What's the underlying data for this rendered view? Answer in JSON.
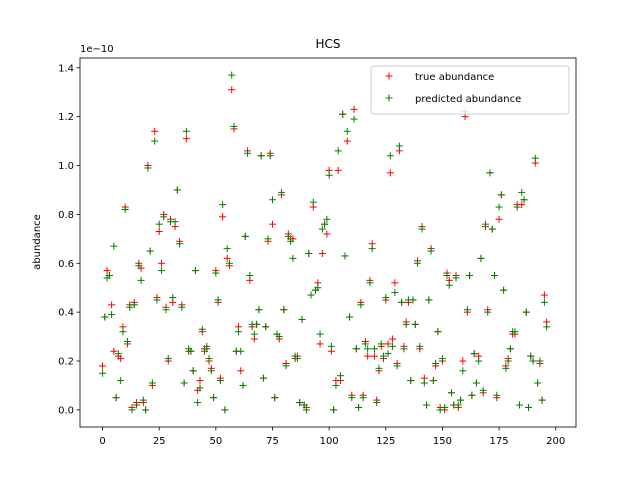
{
  "chart_data": {
    "type": "scatter",
    "title": "HCS",
    "xlabel": "",
    "ylabel": "abundance",
    "y_offset_label": "1e−10",
    "xlim": [
      -9.95,
      208.95
    ],
    "ylim": [
      -0.07,
      1.44
    ],
    "x_ticks": [
      0,
      25,
      50,
      75,
      100,
      125,
      150,
      175,
      200
    ],
    "y_ticks": [
      0.0,
      0.2,
      0.4,
      0.6,
      0.8,
      1.0,
      1.2,
      1.4
    ],
    "y_tick_labels": [
      "0.0",
      "0.2",
      "0.4",
      "0.6",
      "0.8",
      "1.0",
      "1.2",
      "1.4"
    ],
    "x_tick_labels": [
      "0",
      "25",
      "50",
      "75",
      "100",
      "125",
      "150",
      "175",
      "200"
    ],
    "marker": "+",
    "legend_position": "top-right",
    "grid": false,
    "x": [
      0,
      1,
      2,
      3,
      4,
      5,
      6,
      7,
      8,
      9,
      10,
      11,
      12,
      13,
      14,
      15,
      16,
      17,
      18,
      19,
      20,
      21,
      22,
      23,
      24,
      25,
      26,
      27,
      28,
      29,
      30,
      31,
      32,
      33,
      34,
      35,
      36,
      37,
      38,
      39,
      40,
      41,
      42,
      43,
      44,
      45,
      46,
      47,
      48,
      49,
      50,
      51,
      52,
      53,
      54,
      55,
      56,
      57,
      58,
      59,
      60,
      61,
      62,
      63,
      64,
      65,
      66,
      67,
      68,
      69,
      70,
      71,
      72,
      73,
      74,
      75,
      76,
      77,
      78,
      79,
      80,
      81,
      82,
      83,
      84,
      85,
      86,
      87,
      88,
      89,
      90,
      91,
      92,
      93,
      94,
      95,
      96,
      97,
      98,
      99,
      100,
      101,
      102,
      103,
      104,
      105,
      106,
      107,
      108,
      109,
      110,
      111,
      112,
      113,
      114,
      115,
      116,
      117,
      118,
      119,
      120,
      121,
      122,
      123,
      124,
      125,
      126,
      127,
      128,
      129,
      130,
      131,
      132,
      133,
      134,
      135,
      136,
      137,
      138,
      139,
      140,
      141,
      142,
      143,
      144,
      145,
      146,
      147,
      148,
      149,
      150,
      151,
      152,
      153,
      154,
      155,
      156,
      157,
      158,
      159,
      160,
      161,
      162,
      163,
      164,
      165,
      166,
      167,
      168,
      169,
      170,
      171,
      172,
      173,
      174,
      175,
      176,
      177,
      178,
      179,
      180,
      181,
      182,
      183,
      184,
      185,
      186,
      187,
      188,
      189,
      190,
      191,
      192,
      193,
      194,
      195,
      196,
      197,
      198,
      199
    ],
    "series": [
      {
        "name": "true abundance",
        "color": "#ff0000",
        "values": [
          0.18,
          0.38,
          0.57,
          0.55,
          0.43,
          0.24,
          0.05,
          0.22,
          0.21,
          0.34,
          0.83,
          0.27,
          0.43,
          0.01,
          0.44,
          0.03,
          0.6,
          0.58,
          0.03,
          0.0,
          1.0,
          0.65,
          0.1,
          1.14,
          0.46,
          0.73,
          0.6,
          0.8,
          0.42,
          0.2,
          0.78,
          0.44,
          0.75,
          0.9,
          0.69,
          0.43,
          0.11,
          1.11,
          0.24,
          0.24,
          0.16,
          0.57,
          0.08,
          0.12,
          0.32,
          0.24,
          0.26,
          0.2,
          0.17,
          0.05,
          0.57,
          0.44,
          0.13,
          0.79,
          0.0,
          0.62,
          0.59,
          1.31,
          1.15,
          0.24,
          0.34,
          0.16,
          0.1,
          0.71,
          1.06,
          0.53,
          0.34,
          0.29,
          0.35,
          0.41,
          1.04,
          0.13,
          0.34,
          0.69,
          1.05,
          0.76,
          0.05,
          0.31,
          0.29,
          0.88,
          0.41,
          0.19,
          0.72,
          0.7,
          0.7,
          0.21,
          0.22,
          0.03,
          0.37,
          0.02,
          0.01,
          0.64,
          0.47,
          0.83,
          0.49,
          0.52,
          0.27,
          0.64,
          0.76,
          0.72,
          0.98,
          0.24,
          0.0,
          0.12,
          0.98,
          0.12,
          1.21,
          0.63,
          1.1,
          0.38,
          0.06,
          1.23,
          0.25,
          0.01,
          0.44,
          0.06,
          0.28,
          0.22,
          0.53,
          0.68,
          0.22,
          0.04,
          0.16,
          0.26,
          0.21,
          0.45,
          0.27,
          0.97,
          0.29,
          0.52,
          0.19,
          1.06,
          0.44,
          0.26,
          0.36,
          0.44,
          0.12,
          0.45,
          0.35,
          0.61,
          0.25,
          0.75,
          0.13,
          0.02,
          0.45,
          0.66,
          0.12,
          0.18,
          0.32,
          0.01,
          0.2,
          0.0,
          0.56,
          0.53,
          0.07,
          0.02,
          0.55,
          0.01,
          0.04,
          0.2,
          1.2,
          0.4,
          0.55,
          0.06,
          0.23,
          0.11,
          0.22,
          0.62,
          0.07,
          0.75,
          0.41,
          0.97,
          0.74,
          0.55,
          0.05,
          0.78,
          0.88,
          0.49,
          0.18,
          0.21,
          0.25,
          0.31,
          0.31,
          0.84,
          0.02,
          0.84,
          0.86,
          0.4,
          0.01,
          0.22,
          0.2,
          1.01,
          0.11,
          0.19,
          0.04,
          0.47,
          0.36
        ]
      },
      {
        "name": "predicted abundance",
        "color": "#008000",
        "values": [
          0.15,
          0.38,
          0.54,
          0.55,
          0.39,
          0.67,
          0.05,
          0.23,
          0.12,
          0.32,
          0.82,
          0.28,
          0.42,
          0.0,
          0.43,
          0.02,
          0.59,
          0.53,
          0.04,
          0.0,
          0.99,
          0.65,
          0.11,
          1.1,
          0.45,
          0.76,
          0.57,
          0.79,
          0.41,
          0.21,
          0.77,
          0.46,
          0.77,
          0.9,
          0.68,
          0.42,
          0.11,
          1.14,
          0.25,
          0.24,
          0.16,
          0.57,
          0.03,
          0.09,
          0.33,
          0.25,
          0.25,
          0.21,
          0.16,
          0.05,
          0.56,
          0.45,
          0.12,
          0.84,
          0.0,
          0.66,
          0.6,
          1.37,
          1.16,
          0.24,
          0.32,
          0.24,
          0.1,
          0.71,
          1.05,
          0.55,
          0.35,
          0.31,
          0.35,
          0.41,
          1.04,
          0.13,
          0.34,
          0.7,
          1.04,
          0.86,
          0.05,
          0.31,
          0.3,
          0.89,
          0.41,
          0.18,
          0.71,
          0.69,
          0.62,
          0.22,
          0.21,
          0.03,
          0.37,
          0.02,
          0.0,
          0.64,
          0.47,
          0.85,
          0.49,
          0.5,
          0.31,
          0.74,
          0.76,
          0.78,
          0.96,
          0.26,
          0.0,
          0.1,
          1.06,
          0.14,
          1.21,
          0.63,
          1.14,
          0.38,
          0.05,
          1.19,
          0.25,
          0.01,
          0.43,
          0.05,
          0.27,
          0.25,
          0.52,
          0.66,
          0.25,
          0.03,
          0.17,
          0.27,
          0.22,
          0.46,
          0.23,
          1.04,
          0.26,
          0.48,
          0.18,
          1.08,
          0.44,
          0.25,
          0.35,
          0.45,
          0.12,
          0.45,
          0.35,
          0.6,
          0.26,
          0.74,
          0.11,
          0.02,
          0.45,
          0.65,
          0.12,
          0.19,
          0.32,
          0.0,
          0.21,
          0.01,
          0.55,
          0.51,
          0.07,
          0.02,
          0.54,
          0.02,
          0.04,
          0.16,
          1.22,
          0.41,
          0.55,
          0.06,
          0.23,
          0.11,
          0.2,
          0.62,
          0.08,
          0.76,
          0.4,
          0.97,
          0.74,
          0.55,
          0.06,
          0.83,
          0.88,
          0.49,
          0.17,
          0.2,
          0.25,
          0.32,
          0.32,
          0.83,
          0.02,
          0.89,
          0.86,
          0.4,
          0.01,
          0.22,
          0.2,
          1.03,
          0.11,
          0.2,
          0.04,
          0.44,
          0.34
        ]
      }
    ]
  }
}
